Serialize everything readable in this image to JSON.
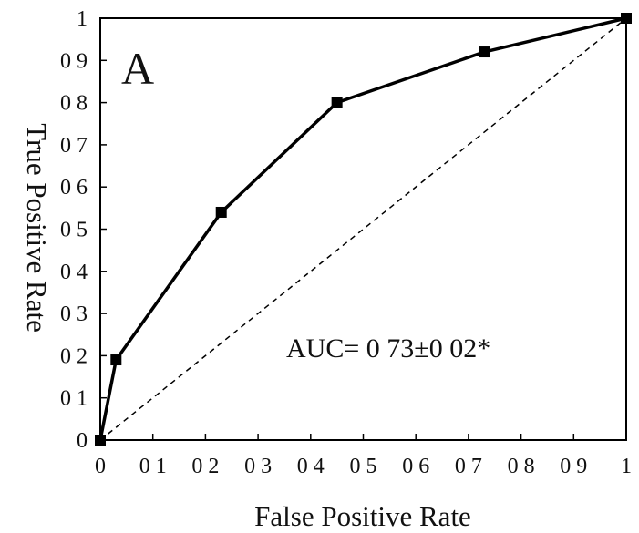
{
  "chart_data": {
    "type": "line",
    "title": "",
    "panel_label": "A",
    "xlabel": "False Positive Rate",
    "ylabel": "True Positive Rate",
    "xlim": [
      0,
      1
    ],
    "ylim": [
      0,
      1
    ],
    "x_ticks": [
      "0",
      "0 1",
      "0 2",
      "0 3",
      "0 4",
      "0 5",
      "0 6",
      "0 7",
      "0 8",
      "0 9",
      "1"
    ],
    "y_ticks": [
      "0",
      "0 1",
      "0 2",
      "0 3",
      "0 4",
      "0 5",
      "0 6",
      "0 7",
      "0 8",
      "0 9",
      "1"
    ],
    "annotation": "AUC= 0 73±0 02*",
    "grid": false,
    "series": [
      {
        "x": [
          0.0,
          0.03,
          0.23,
          0.45,
          0.73,
          1.0
        ],
        "y": [
          0.0,
          0.19,
          0.54,
          0.8,
          0.92,
          1.0
        ],
        "color": "#000000",
        "marker": "square",
        "style": "solid"
      },
      {
        "x": [
          0,
          1
        ],
        "y": [
          0,
          1
        ],
        "color": "#000000",
        "style": "dashed"
      }
    ]
  }
}
